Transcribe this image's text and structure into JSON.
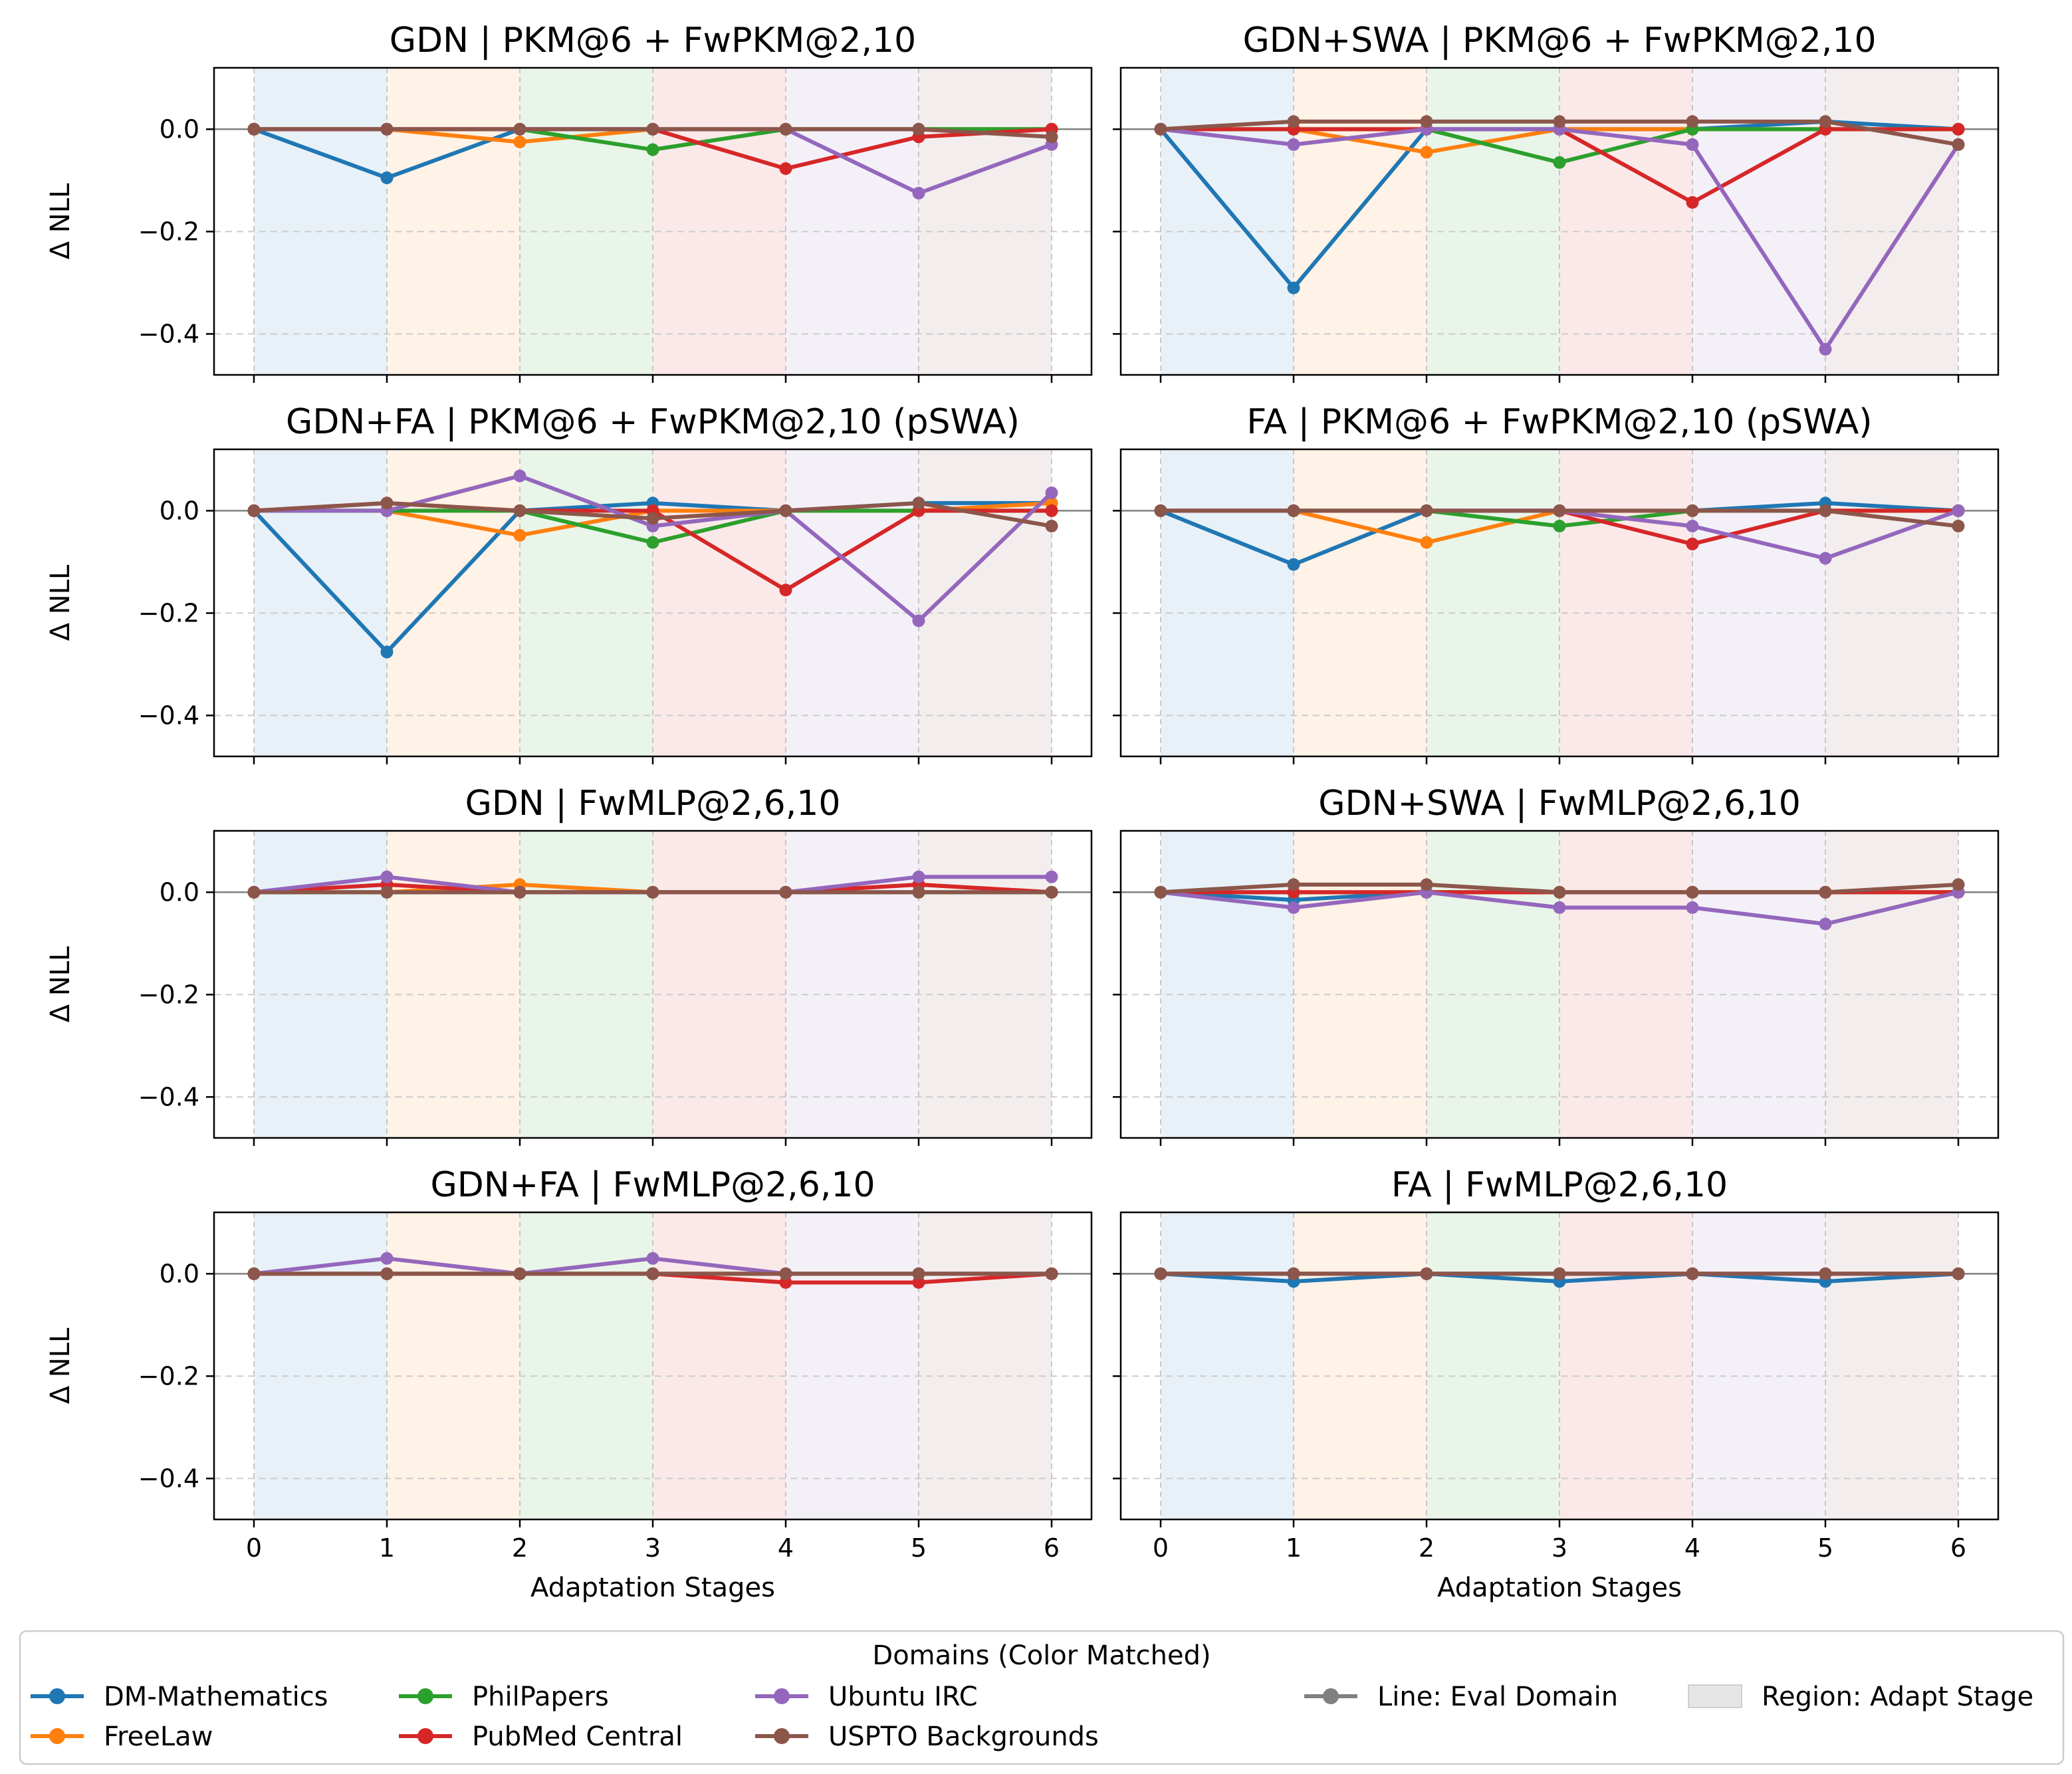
{
  "chart_data": {
    "type": "line",
    "x": [
      0,
      1,
      2,
      3,
      4,
      5,
      6
    ],
    "ylim": [
      -0.48,
      0.12
    ],
    "yticks": [
      0.0,
      -0.2,
      -0.4
    ],
    "ytick_labels": [
      "0.0",
      "−0.2",
      "−0.4"
    ],
    "xtick_labels": [
      "0",
      "1",
      "2",
      "3",
      "4",
      "5",
      "6"
    ],
    "ylabel": "Δ NLL",
    "xlabel": "Adaptation Stages",
    "grid": "horizontal dashed",
    "domains": [
      {
        "name": "DM-Mathematics",
        "color": "#1f77b4"
      },
      {
        "name": "FreeLaw",
        "color": "#ff7f0e"
      },
      {
        "name": "PhilPapers",
        "color": "#2ca02c"
      },
      {
        "name": "PubMed Central",
        "color": "#d62728"
      },
      {
        "name": "Ubuntu IRC",
        "color": "#9467bd"
      },
      {
        "name": "USPTO Backgrounds",
        "color": "#8c564b"
      }
    ],
    "region_colors": [
      "#1f77b4",
      "#ff7f0e",
      "#2ca02c",
      "#d62728",
      "#9467bd",
      "#8c564b"
    ],
    "panels": [
      {
        "title": "GDN | PKM@6 + FwPKM@2,10",
        "series": [
          {
            "name": "DM-Mathematics",
            "values": [
              0,
              -0.095,
              0,
              0,
              0,
              0,
              0
            ]
          },
          {
            "name": "FreeLaw",
            "values": [
              0,
              0,
              -0.025,
              0,
              0,
              0,
              0
            ]
          },
          {
            "name": "PhilPapers",
            "values": [
              0,
              0,
              0,
              -0.04,
              0,
              0,
              0
            ]
          },
          {
            "name": "PubMed Central",
            "values": [
              0,
              0,
              0,
              0,
              -0.077,
              -0.015,
              0
            ]
          },
          {
            "name": "Ubuntu IRC",
            "values": [
              0,
              0,
              0,
              0,
              0,
              -0.125,
              -0.03
            ]
          },
          {
            "name": "USPTO Backgrounds",
            "values": [
              0,
              0,
              0,
              0,
              0,
              0,
              -0.015
            ]
          }
        ]
      },
      {
        "title": "GDN+SWA | PKM@6 + FwPKM@2,10",
        "series": [
          {
            "name": "DM-Mathematics",
            "values": [
              0,
              -0.31,
              0,
              0,
              0,
              0.015,
              0
            ]
          },
          {
            "name": "FreeLaw",
            "values": [
              0,
              0,
              -0.045,
              0,
              0,
              0,
              0
            ]
          },
          {
            "name": "PhilPapers",
            "values": [
              0,
              0,
              0,
              -0.065,
              0,
              0,
              0
            ]
          },
          {
            "name": "PubMed Central",
            "values": [
              0,
              0,
              0,
              0,
              -0.143,
              0,
              0
            ]
          },
          {
            "name": "Ubuntu IRC",
            "values": [
              0,
              -0.03,
              0,
              0,
              -0.03,
              -0.43,
              -0.03
            ]
          },
          {
            "name": "USPTO Backgrounds",
            "values": [
              0,
              0.015,
              0.015,
              0.015,
              0.015,
              0.015,
              -0.03
            ]
          }
        ]
      },
      {
        "title": "GDN+FA | PKM@6 + FwPKM@2,10 (pSWA)",
        "series": [
          {
            "name": "DM-Mathematics",
            "values": [
              0,
              -0.276,
              0,
              0.015,
              0,
              0.015,
              0.015
            ]
          },
          {
            "name": "FreeLaw",
            "values": [
              0,
              0,
              -0.048,
              0,
              0,
              0,
              0.015
            ]
          },
          {
            "name": "PhilPapers",
            "values": [
              0,
              0,
              0,
              -0.062,
              0,
              0,
              0
            ]
          },
          {
            "name": "PubMed Central",
            "values": [
              0,
              0.015,
              0,
              0,
              -0.155,
              0,
              0
            ]
          },
          {
            "name": "Ubuntu IRC",
            "values": [
              0,
              0,
              0.068,
              -0.03,
              0,
              -0.215,
              0.035
            ]
          },
          {
            "name": "USPTO Backgrounds",
            "values": [
              0,
              0.015,
              0,
              -0.015,
              0,
              0.015,
              -0.03
            ]
          }
        ]
      },
      {
        "title": "FA | PKM@6 + FwPKM@2,10 (pSWA)",
        "series": [
          {
            "name": "DM-Mathematics",
            "values": [
              0,
              -0.105,
              0,
              0,
              0,
              0.015,
              0
            ]
          },
          {
            "name": "FreeLaw",
            "values": [
              0,
              0,
              -0.062,
              0,
              0,
              0,
              0
            ]
          },
          {
            "name": "PhilPapers",
            "values": [
              0,
              0,
              0,
              -0.03,
              0,
              0,
              0
            ]
          },
          {
            "name": "PubMed Central",
            "values": [
              0,
              0,
              0,
              0,
              -0.065,
              0,
              0
            ]
          },
          {
            "name": "Ubuntu IRC",
            "values": [
              0,
              0,
              0,
              0,
              -0.03,
              -0.093,
              0
            ]
          },
          {
            "name": "USPTO Backgrounds",
            "values": [
              0,
              0,
              0,
              0,
              0,
              0,
              -0.03
            ]
          }
        ]
      },
      {
        "title": "GDN | FwMLP@2,6,10",
        "series": [
          {
            "name": "DM-Mathematics",
            "values": [
              0,
              0,
              0,
              0,
              0,
              0,
              0
            ]
          },
          {
            "name": "FreeLaw",
            "values": [
              0,
              0,
              0.015,
              0,
              0,
              0.015,
              0
            ]
          },
          {
            "name": "PhilPapers",
            "values": [
              0,
              0,
              0,
              0,
              0,
              0,
              0
            ]
          },
          {
            "name": "PubMed Central",
            "values": [
              0,
              0.015,
              0,
              0,
              0,
              0.015,
              0
            ]
          },
          {
            "name": "Ubuntu IRC",
            "values": [
              0,
              0.03,
              0,
              0,
              0,
              0.03,
              0.03
            ]
          },
          {
            "name": "USPTO Backgrounds",
            "values": [
              0,
              0,
              0,
              0,
              0,
              0,
              0
            ]
          }
        ]
      },
      {
        "title": "GDN+SWA | FwMLP@2,6,10",
        "series": [
          {
            "name": "DM-Mathematics",
            "values": [
              0,
              -0.015,
              0,
              0,
              0,
              0,
              0
            ]
          },
          {
            "name": "FreeLaw",
            "values": [
              0,
              0,
              0,
              0,
              0,
              0,
              0
            ]
          },
          {
            "name": "PhilPapers",
            "values": [
              0,
              0,
              0,
              0,
              0,
              0,
              0
            ]
          },
          {
            "name": "PubMed Central",
            "values": [
              0,
              0,
              0,
              0,
              0,
              0,
              0
            ]
          },
          {
            "name": "Ubuntu IRC",
            "values": [
              0,
              -0.03,
              0,
              -0.03,
              -0.03,
              -0.062,
              0
            ]
          },
          {
            "name": "USPTO Backgrounds",
            "values": [
              0,
              0.015,
              0.015,
              0,
              0,
              0,
              0.015
            ]
          }
        ]
      },
      {
        "title": "GDN+FA | FwMLP@2,6,10",
        "series": [
          {
            "name": "DM-Mathematics",
            "values": [
              0,
              0,
              0,
              0,
              0,
              0,
              0
            ]
          },
          {
            "name": "FreeLaw",
            "values": [
              0,
              0,
              0,
              0,
              0,
              0,
              0
            ]
          },
          {
            "name": "PhilPapers",
            "values": [
              0,
              0,
              0,
              0,
              0,
              0,
              0
            ]
          },
          {
            "name": "PubMed Central",
            "values": [
              0,
              0,
              0,
              0,
              -0.017,
              -0.017,
              0
            ]
          },
          {
            "name": "Ubuntu IRC",
            "values": [
              0,
              0.03,
              0,
              0.03,
              0,
              0,
              0
            ]
          },
          {
            "name": "USPTO Backgrounds",
            "values": [
              0,
              0,
              0,
              0,
              0,
              0,
              0
            ]
          }
        ]
      },
      {
        "title": "FA | FwMLP@2,6,10",
        "series": [
          {
            "name": "DM-Mathematics",
            "values": [
              0,
              -0.015,
              0,
              -0.015,
              0,
              -0.015,
              0
            ]
          },
          {
            "name": "FreeLaw",
            "values": [
              0,
              0,
              0,
              0,
              0,
              0,
              0
            ]
          },
          {
            "name": "PhilPapers",
            "values": [
              0,
              0,
              0,
              0,
              0,
              0,
              0
            ]
          },
          {
            "name": "PubMed Central",
            "values": [
              0,
              0,
              0,
              0,
              0,
              0,
              0
            ]
          },
          {
            "name": "Ubuntu IRC",
            "values": [
              0,
              0,
              0,
              0,
              0,
              0,
              0
            ]
          },
          {
            "name": "USPTO Backgrounds",
            "values": [
              0,
              0,
              0,
              0,
              0,
              0,
              0
            ]
          }
        ]
      }
    ],
    "legend": {
      "title": "Domains (Color Matched)",
      "position": "bottom",
      "entries": [
        {
          "label": "DM-Mathematics",
          "color": "#1f77b4",
          "kind": "line"
        },
        {
          "label": "FreeLaw",
          "color": "#ff7f0e",
          "kind": "line"
        },
        {
          "label": "PhilPapers",
          "color": "#2ca02c",
          "kind": "line"
        },
        {
          "label": "PubMed Central",
          "color": "#d62728",
          "kind": "line"
        },
        {
          "label": "Ubuntu IRC",
          "color": "#9467bd",
          "kind": "line"
        },
        {
          "label": "USPTO Backgrounds",
          "color": "#8c564b",
          "kind": "line"
        },
        {
          "label": "Line: Eval Domain",
          "color": "#808080",
          "kind": "line"
        },
        {
          "label": "Region: Adapt Stage",
          "color": "#808080",
          "kind": "region"
        }
      ]
    }
  }
}
